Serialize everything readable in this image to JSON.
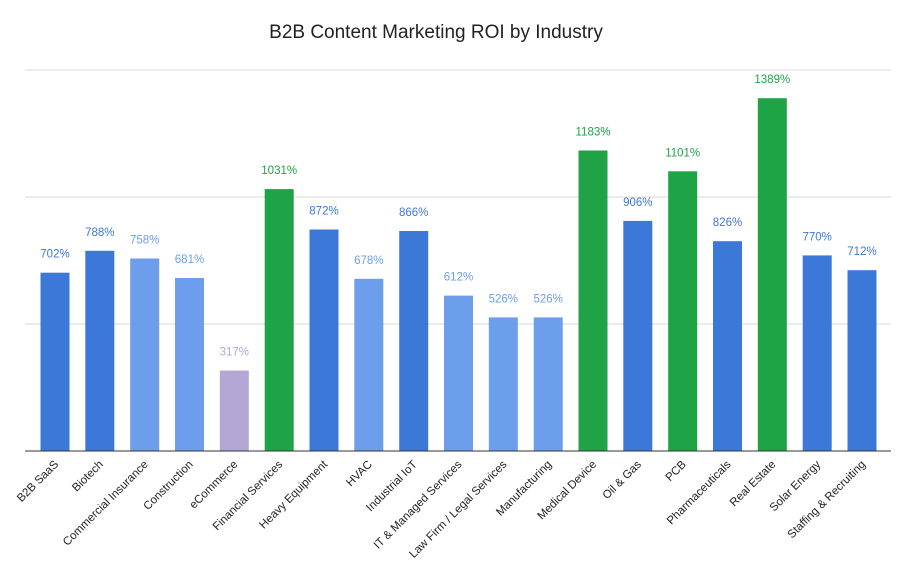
{
  "chart_data": {
    "type": "bar",
    "title": "B2B Content Marketing ROI by Industry",
    "xlabel": "",
    "ylabel": "",
    "ylim": [
      0,
      1500
    ],
    "grid": true,
    "legend": "none",
    "categories": [
      "B2B SaaS",
      "Biotech",
      "Commercial Insurance",
      "Construction",
      "eCommerce",
      "Financial Services",
      "Heavy Equipment",
      "HVAC",
      "Industrial IoT",
      "IT & Managed Services",
      "Law Firm / Legal Services",
      "Manufacturing",
      "Medical Device",
      "Oil & Gas",
      "PCB",
      "Pharmaceuticals",
      "Real Estate",
      "Solar Energy",
      "Staffing & Recruiting"
    ],
    "values": [
      702,
      788,
      758,
      681,
      317,
      1031,
      872,
      678,
      866,
      612,
      526,
      526,
      1183,
      906,
      1101,
      826,
      1389,
      770,
      712
    ],
    "data_labels": [
      "702%",
      "788%",
      "758%",
      "681%",
      "317%",
      "1031%",
      "872%",
      "678%",
      "866%",
      "612%",
      "526%",
      "526%",
      "1183%",
      "906%",
      "1101%",
      "826%",
      "1389%",
      "770%",
      "712%"
    ],
    "bar_colors": [
      "#3c78d8",
      "#3c78d8",
      "#6d9eeb",
      "#6d9eeb",
      "#b4a7d6",
      "#1ea446",
      "#3c78d8",
      "#6d9eeb",
      "#3c78d8",
      "#6d9eeb",
      "#6d9eeb",
      "#6d9eeb",
      "#1ea446",
      "#3c78d8",
      "#1ea446",
      "#3c78d8",
      "#1ea446",
      "#3c78d8",
      "#3c78d8"
    ],
    "label_colors": [
      "#3c78d8",
      "#3c78d8",
      "#6d9eeb",
      "#6d9eeb",
      "#b4a7d6",
      "#1ea446",
      "#3c78d8",
      "#6d9eeb",
      "#3c78d8",
      "#6d9eeb",
      "#6d9eeb",
      "#6d9eeb",
      "#1ea446",
      "#3c78d8",
      "#1ea446",
      "#3c78d8",
      "#1ea446",
      "#3c78d8",
      "#3c78d8"
    ]
  }
}
